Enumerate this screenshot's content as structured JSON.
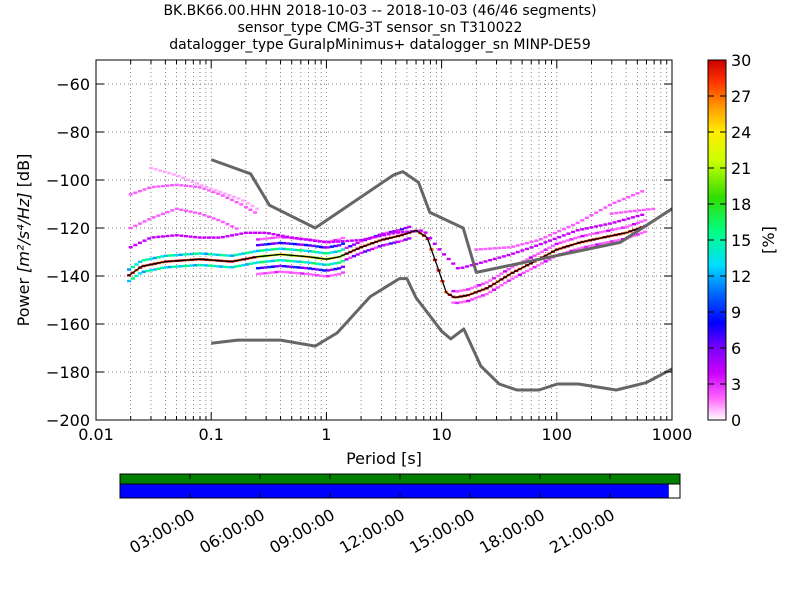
{
  "title": {
    "line1": "BK.BK66.00.HHN   2018-10-03 -- 2018-10-03  (46/46 segments)",
    "line2": "sensor_type CMG-3T sensor_sn T310022",
    "line3": "datalogger_type GuralpMinimus+ datalogger_sn MINP-DE59"
  },
  "chart_data": [
    {
      "type": "heatmap",
      "title": "",
      "xlabel": "Period [s]",
      "ylabel_prefix": "Power ",
      "ylabel_math": "[m²/s⁴/Hz]",
      "ylabel_suffix": " [dB]",
      "xscale": "log",
      "xlim": [
        0.01,
        1000
      ],
      "ylim": [
        -200,
        -50
      ],
      "x_ticks": [
        0.01,
        0.1,
        1,
        10,
        100,
        1000
      ],
      "x_tick_labels": [
        "0.01",
        "0.1",
        "1",
        "10",
        "100",
        "1000"
      ],
      "y_ticks": [
        -200,
        -180,
        -160,
        -140,
        -120,
        -100,
        -80,
        -60
      ],
      "y_tick_labels": [
        "−200",
        "−180",
        "−160",
        "−140",
        "−120",
        "−100",
        "−80",
        "−60"
      ],
      "grid": "dotted",
      "colorbar": {
        "label": "[%]",
        "range": [
          0,
          30
        ],
        "ticks": [
          0,
          3,
          6,
          9,
          12,
          15,
          18,
          21,
          24,
          27,
          30
        ],
        "tick_labels": [
          "0",
          "3",
          "6",
          "9",
          "12",
          "15",
          "18",
          "21",
          "24",
          "27",
          "30"
        ]
      },
      "noise_model_high": {
        "color": "#666666",
        "x": [
          0.1,
          0.22,
          0.32,
          0.8,
          3.8,
          4.6,
          6.3,
          7.9,
          15.4,
          20,
          354.8,
          1000
        ],
        "y": [
          -91.5,
          -97.4,
          -110.5,
          -120,
          -98,
          -96.5,
          -101,
          -113.5,
          -120,
          -138.5,
          -126,
          -112
        ]
      },
      "noise_model_low": {
        "color": "#666666",
        "x": [
          0.1,
          0.17,
          0.4,
          0.8,
          1.24,
          2.4,
          4.3,
          5,
          6,
          10,
          12,
          15.6,
          21.9,
          31.6,
          45,
          70,
          101,
          154,
          328,
          600,
          1000
        ],
        "y": [
          -168,
          -166.7,
          -166.7,
          -169.2,
          -163.7,
          -148.6,
          -141.1,
          -141.1,
          -149,
          -163,
          -166.2,
          -162.1,
          -177.5,
          -185,
          -187.5,
          -187.5,
          -185,
          -185,
          -187.5,
          -184.4,
          -178.7
        ]
      },
      "mode_line": {
        "color": "#000000",
        "x": [
          0.019,
          0.025,
          0.04,
          0.08,
          0.15,
          0.25,
          0.4,
          0.7,
          1.0,
          1.3,
          2.0,
          3.0,
          4.5,
          6.0,
          7.5,
          9.5,
          11,
          13,
          17,
          25,
          40,
          70,
          100,
          160,
          250,
          400,
          600
        ],
        "y": [
          -140,
          -136,
          -134,
          -133,
          -134,
          -132,
          -131,
          -132,
          -133,
          -132,
          -128,
          -125,
          -123,
          -121,
          -124,
          -138,
          -147,
          -149,
          -148,
          -145,
          -139,
          -133,
          -129,
          -126,
          -124,
          -122,
          -119
        ]
      },
      "density_bands": [
        {
          "label_pct": 4,
          "x": [
            0.02,
            0.03,
            0.05,
            0.08,
            0.12,
            0.2,
            0.3,
            0.5,
            1.0,
            2.0,
            4.0,
            7.0,
            10,
            14,
            20,
            40,
            70,
            150,
            300,
            600
          ],
          "y": [
            -128,
            -124,
            -123,
            -124,
            -124,
            -122,
            -122,
            -124,
            -126,
            -125,
            -122,
            -121,
            -130,
            -137,
            -135,
            -131,
            -127,
            -121,
            -118,
            -114
          ]
        },
        {
          "label_pct": 2,
          "x": [
            0.02,
            0.03,
            0.05,
            0.08,
            0.12,
            0.18,
            0.25
          ],
          "y": [
            -106,
            -103,
            -102,
            -103,
            -106,
            -110,
            -114
          ]
        },
        {
          "label_pct": 1,
          "x": [
            0.03,
            0.05,
            0.08,
            0.12,
            0.18,
            0.25
          ],
          "y": [
            -95,
            -98,
            -102,
            -105,
            -108,
            -112
          ]
        },
        {
          "label_pct": 2,
          "x": [
            0.02,
            0.03,
            0.05,
            0.08,
            0.12,
            0.18
          ],
          "y": [
            -120,
            -116,
            -112,
            -114,
            -117,
            -121
          ]
        },
        {
          "label_pct": 2,
          "x": [
            20,
            40,
            70,
            150,
            300,
            600
          ],
          "y": [
            -129,
            -128,
            -125,
            -118,
            -110,
            -104
          ]
        },
        {
          "label_pct": 2,
          "x": [
            300,
            450,
            700
          ],
          "y": [
            -114,
            -113,
            -112
          ]
        }
      ]
    },
    {
      "type": "timeline",
      "x_tick_labels": [
        "03:00:00",
        "06:00:00",
        "09:00:00",
        "12:00:00",
        "15:00:00",
        "18:00:00",
        "21:00:00"
      ],
      "top_bar": {
        "color": "#007f00",
        "coverage": 1.0
      },
      "bottom_bar": {
        "color": "#0000ff",
        "coverage": 0.98
      }
    }
  ]
}
